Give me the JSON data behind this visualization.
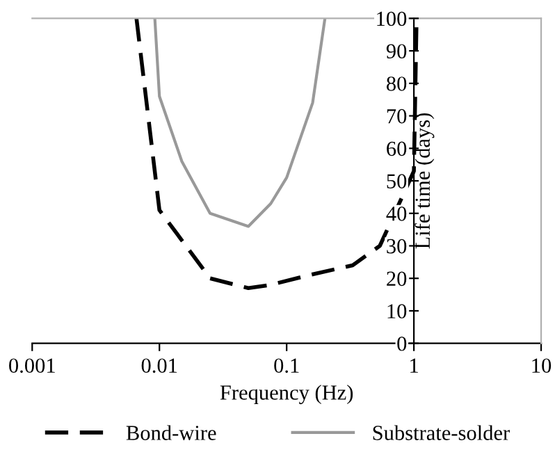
{
  "chart_data": {
    "type": "line",
    "xlabel": "Frequency (Hz)",
    "ylabel": "Life time (days)",
    "log": "x",
    "xlim": [
      0.001,
      10
    ],
    "xticks": [
      0.001,
      0.01,
      0.1,
      1,
      10
    ],
    "ylim": [
      0,
      100
    ],
    "yticks": [
      0,
      10,
      20,
      30,
      40,
      50,
      60,
      70,
      80,
      90,
      100
    ],
    "grid": false,
    "legend": "bottom",
    "series": [
      {
        "name": "Bond-wire",
        "color": "#000000",
        "line_style": "dashed",
        "x": [
          0.0066,
          0.01,
          0.025,
          0.05,
          0.075,
          0.15,
          0.33,
          0.54,
          1.0,
          1.05
        ],
        "values": [
          100,
          41,
          20,
          17,
          18,
          21,
          24,
          30,
          53,
          100
        ]
      },
      {
        "name": "Substrate-solder",
        "color": "#999999",
        "line_style": "solid",
        "x": [
          0.0092,
          0.01,
          0.015,
          0.025,
          0.05,
          0.075,
          0.1,
          0.16,
          0.2
        ],
        "values": [
          100,
          76,
          56,
          40,
          36,
          43,
          51,
          74,
          100
        ]
      }
    ]
  }
}
